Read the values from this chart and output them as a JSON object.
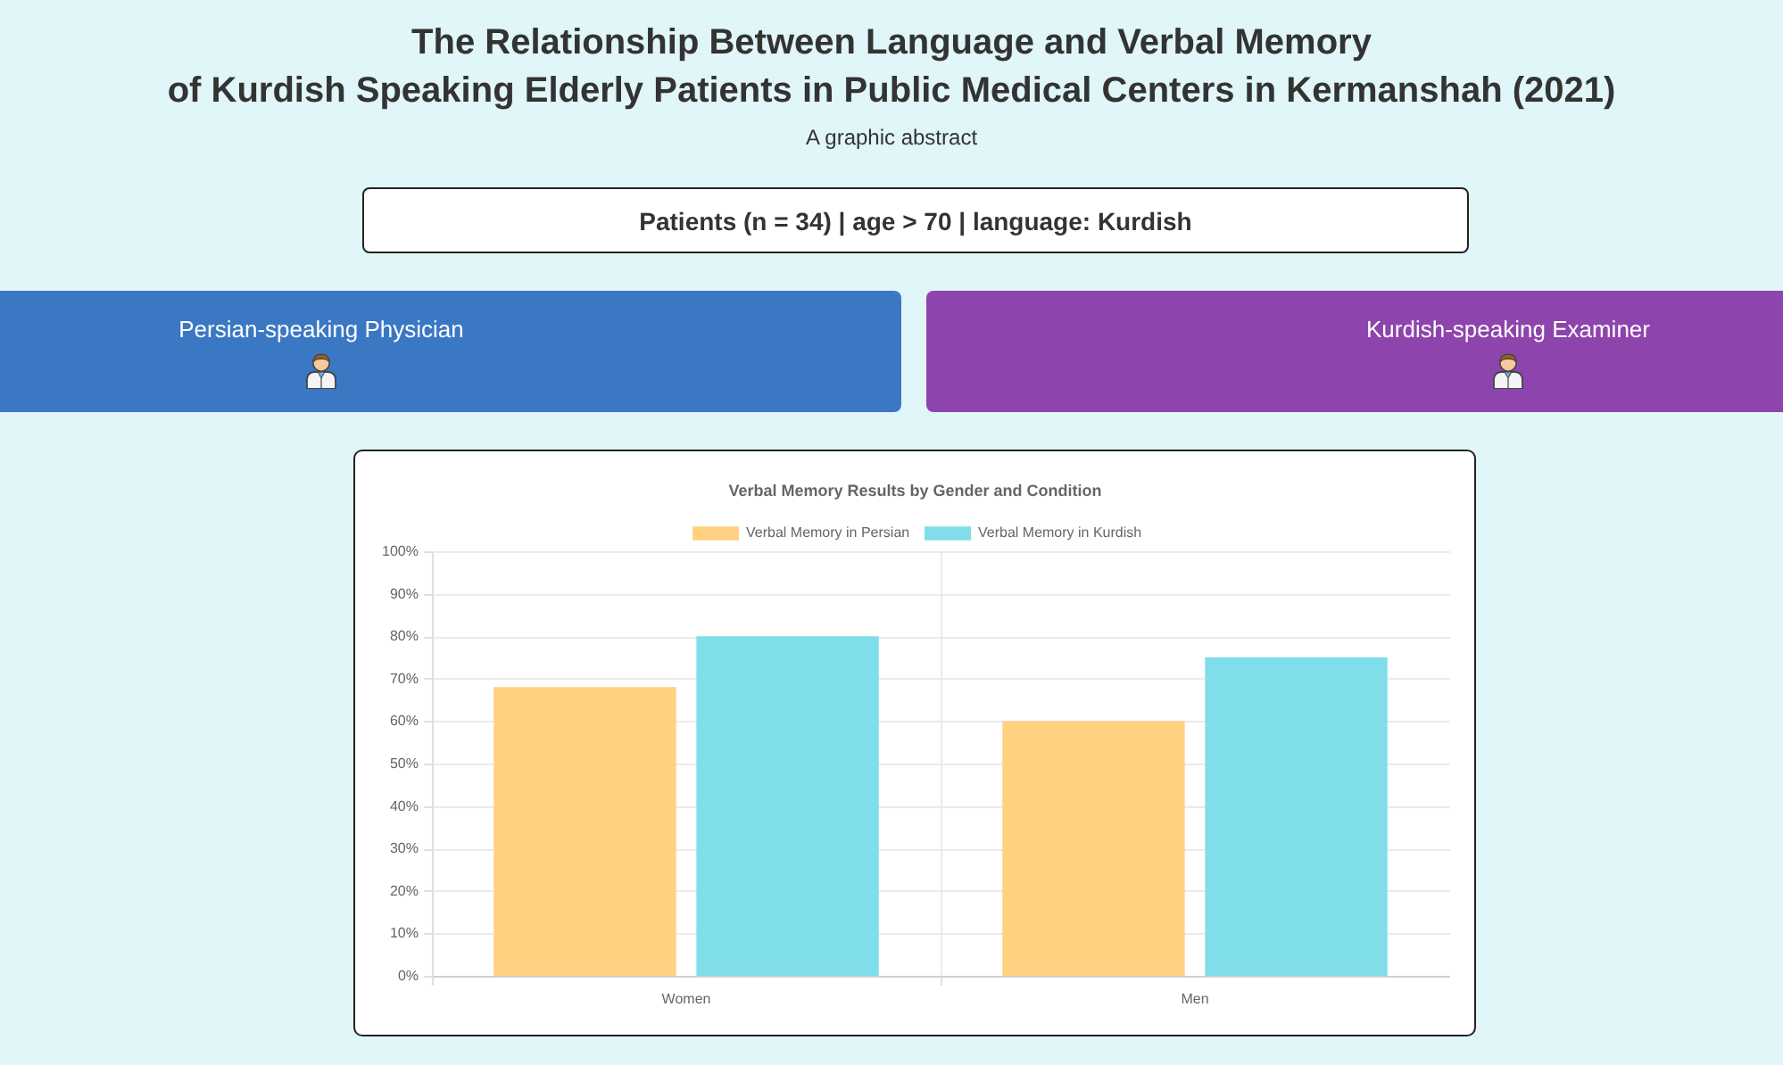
{
  "chart_data": {
    "type": "bar",
    "title": "Verbal Memory Results by Gender and Condition",
    "annotations": [
      "The Relationship Between Language and Verbal Memory\nof Kurdish Speaking Elderly Patients in Public Medical Centers in Kermanshah (2021)",
      "A graphic abstract",
      "Patients (n = 34) | age > 70 | language: Kurdish",
      "Persian-speaking Physician",
      "Kurdish-speaking Examiner"
    ],
    "categories": [
      "Women",
      "Men"
    ],
    "series": [
      {
        "name": "Verbal Memory in Persian",
        "color": "#ffd180",
        "values": [
          68,
          60
        ]
      },
      {
        "name": "Verbal Memory in Kurdish",
        "color": "#80deea",
        "values": [
          80,
          75
        ]
      }
    ],
    "ylim": [
      0,
      100
    ],
    "yticks": [
      {
        "value": 0,
        "label": "0%"
      },
      {
        "value": 10,
        "label": "10%"
      },
      {
        "value": 20,
        "label": "20%"
      },
      {
        "value": 30,
        "label": "30%"
      },
      {
        "value": 40,
        "label": "40%"
      },
      {
        "value": 50,
        "label": "50%"
      },
      {
        "value": 60,
        "label": "60%"
      },
      {
        "value": 70,
        "label": "70%"
      },
      {
        "value": 80,
        "label": "80%"
      },
      {
        "value": 90,
        "label": "90%"
      },
      {
        "value": 100,
        "label": "100%"
      }
    ],
    "grid": true,
    "legend": "top"
  }
}
